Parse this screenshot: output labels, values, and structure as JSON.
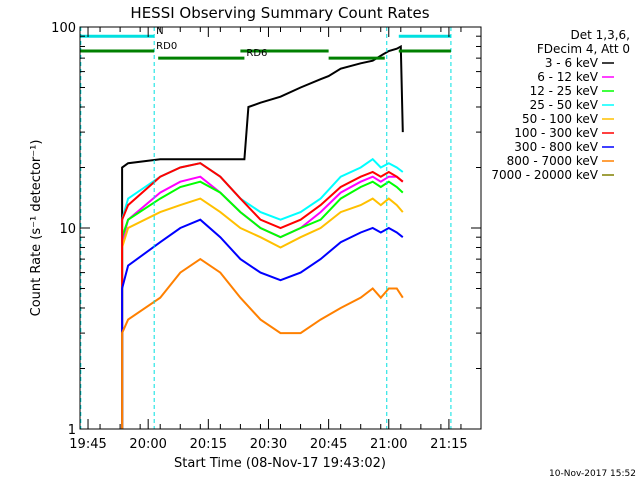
{
  "chart_data": {
    "type": "line",
    "title": "HESSI Observing Summary Count Rates",
    "xlabel": "Start Time (08-Nov-17 19:43:02)",
    "ylabel": "Count Rate (s⁻¹ detector⁻¹)",
    "y_scale": "log",
    "ylim": [
      1,
      100
    ],
    "y_ticks": [
      1,
      10,
      100
    ],
    "y_tick_labels": [
      "1",
      "10",
      "100"
    ],
    "xlim_minutes_after_1943": [
      0,
      100
    ],
    "x_ticks": [
      {
        "label": "19:45",
        "minutes_after_1943": 2
      },
      {
        "label": "20:00",
        "minutes_after_1943": 17
      },
      {
        "label": "20:15",
        "minutes_after_1943": 32
      },
      {
        "label": "20:30",
        "minutes_after_1943": 47
      },
      {
        "label": "20:45",
        "minutes_after_1943": 62
      },
      {
        "label": "21:00",
        "minutes_after_1943": 77
      },
      {
        "label": "21:15",
        "minutes_after_1943": 92
      }
    ],
    "grid": false,
    "legend_position": "right",
    "legend_header": [
      "Det 1,3,6,",
      "FDecim 4, Att 0"
    ],
    "series": [
      {
        "name": "3 - 6 keV",
        "color": "#000000",
        "x": [
          10.5,
          10.5,
          12,
          20,
          25,
          32,
          40,
          41,
          42,
          45,
          50,
          55,
          60,
          62,
          65,
          70,
          73,
          75,
          77,
          79,
          80,
          80.5
        ],
        "y": [
          1,
          20,
          21,
          22,
          22,
          22,
          22,
          22,
          40,
          42,
          45,
          50,
          55,
          57,
          62,
          66,
          68,
          72,
          76,
          78,
          80,
          30
        ]
      },
      {
        "name": "6 - 12 keV",
        "color": "#ff00ff",
        "x": [
          10.5,
          10.5,
          12,
          20,
          25,
          30,
          35,
          40,
          45,
          50,
          55,
          60,
          65,
          70,
          73,
          75,
          77,
          79,
          80.5
        ],
        "y": [
          1,
          8.5,
          11,
          15,
          17,
          18,
          15,
          12,
          10,
          9,
          10,
          12,
          15,
          17,
          18,
          17,
          18,
          18,
          17
        ]
      },
      {
        "name": "12 - 25 keV",
        "color": "#00ff00",
        "x": [
          10.5,
          10.5,
          12,
          20,
          25,
          30,
          35,
          40,
          45,
          50,
          55,
          60,
          65,
          70,
          73,
          75,
          77,
          79,
          80.5
        ],
        "y": [
          1,
          9,
          11,
          14,
          16,
          17,
          15,
          12,
          10,
          9,
          10,
          11,
          14,
          16,
          17,
          16,
          17,
          16,
          15
        ]
      },
      {
        "name": "25 - 50 keV",
        "color": "#00ffff",
        "x": [
          10.5,
          10.5,
          12,
          20,
          25,
          30,
          35,
          40,
          45,
          50,
          55,
          60,
          65,
          70,
          73,
          75,
          77,
          79,
          80.5
        ],
        "y": [
          1,
          11,
          14,
          18,
          20,
          21,
          18,
          14,
          12,
          11,
          12,
          14,
          18,
          20,
          22,
          20,
          21,
          20,
          19
        ]
      },
      {
        "name": "50 - 100 keV",
        "color": "#ffc000",
        "x": [
          10.5,
          10.5,
          12,
          20,
          25,
          30,
          35,
          40,
          45,
          50,
          55,
          60,
          65,
          70,
          73,
          75,
          77,
          79,
          80.5
        ],
        "y": [
          1,
          8,
          10,
          12,
          13,
          14,
          12,
          10,
          9,
          8,
          9,
          10,
          12,
          13,
          14,
          13,
          14,
          13,
          12
        ]
      },
      {
        "name": "100 - 300 keV",
        "color": "#ff0000",
        "x": [
          10.5,
          10.5,
          12,
          20,
          25,
          30,
          35,
          40,
          45,
          50,
          55,
          60,
          65,
          70,
          73,
          75,
          77,
          79,
          80.5
        ],
        "y": [
          1,
          11,
          13,
          18,
          20,
          21,
          18,
          14,
          11,
          10,
          11,
          13,
          16,
          18,
          19,
          18,
          19,
          18,
          17
        ]
      },
      {
        "name": "300 - 800 keV",
        "color": "#0000ff",
        "x": [
          10.5,
          10.5,
          12,
          20,
          25,
          30,
          35,
          40,
          45,
          50,
          55,
          60,
          65,
          70,
          73,
          75,
          77,
          79,
          80.5
        ],
        "y": [
          1,
          5,
          6.5,
          8.5,
          10,
          11,
          9,
          7,
          6,
          5.5,
          6,
          7,
          8.5,
          9.5,
          10,
          9.5,
          10,
          9.5,
          9
        ]
      },
      {
        "name": "800 - 7000 keV",
        "color": "#ff8000",
        "x": [
          10.5,
          10.5,
          12,
          20,
          25,
          30,
          35,
          40,
          45,
          50,
          55,
          60,
          65,
          70,
          73,
          75,
          77,
          79,
          80.5
        ],
        "y": [
          1,
          3,
          3.5,
          4.5,
          6,
          7,
          6,
          4.5,
          3.5,
          3,
          3,
          3.5,
          4,
          4.5,
          5,
          4.5,
          5,
          5,
          4.5
        ]
      },
      {
        "name": "7000 - 20000 keV",
        "color": "#808000",
        "x": [],
        "y": []
      }
    ],
    "vertical_markers_minutes_after_1943": [
      0.2,
      18.5,
      76.5,
      92.5
    ],
    "vertical_marker_color": "#00e0e0",
    "flag_bars": [
      {
        "label": "N",
        "color": "#00e0e0",
        "y": 90,
        "segments": [
          [
            0,
            18.5
          ],
          [
            79.5,
            92.5
          ]
        ]
      },
      {
        "label": "RD0",
        "color": "#008000",
        "y": 76,
        "segments": [
          [
            0,
            18.5
          ],
          [
            40,
            62
          ],
          [
            79.5,
            92.5
          ]
        ]
      },
      {
        "label": "RD6",
        "color": "#008000",
        "y": 70,
        "segments": [
          [
            19.5,
            41
          ],
          [
            62,
            76
          ]
        ]
      }
    ]
  },
  "footer": {
    "timestamp": "10-Nov-2017 15:52"
  }
}
